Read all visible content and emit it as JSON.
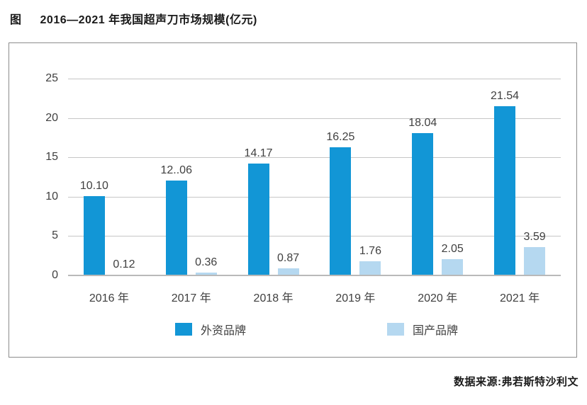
{
  "page": {
    "title_prefix": "图",
    "title": "2016—2021 年我国超声刀市场规模(亿元)",
    "source": "数据来源:弗若斯特沙利文"
  },
  "chart_data": {
    "type": "bar",
    "title": "2016—2021 年我国超声刀市场规模(亿元)",
    "unit": "亿元",
    "categories": [
      "2016 年",
      "2017 年",
      "2018 年",
      "2019 年",
      "2020 年",
      "2021 年"
    ],
    "series": [
      {
        "name": "外资品牌",
        "color": "#1296d6",
        "values": [
          10.1,
          12.06,
          14.17,
          16.25,
          18.04,
          21.54
        ],
        "labels": [
          "10.10",
          "12..06",
          "14.17",
          "16.25",
          "18.04",
          "21.54"
        ]
      },
      {
        "name": "国产品牌",
        "color": "#b5d8f0",
        "values": [
          0.12,
          0.36,
          0.87,
          1.76,
          2.05,
          3.59
        ],
        "labels": [
          "0.12",
          "0.36",
          "0.87",
          "1.76",
          "2.05",
          "3.59"
        ]
      }
    ],
    "y_ticks": [
      0,
      5,
      10,
      15,
      20,
      25
    ],
    "ylim": [
      0,
      25
    ],
    "grid": true,
    "legend_position": "bottom"
  },
  "colors": {
    "foreign_brand": "#1296d6",
    "domestic_brand": "#b5d8f0",
    "gridline": "#c6c6c6",
    "panel_border": "#8c8c8c",
    "text": "#404040"
  }
}
